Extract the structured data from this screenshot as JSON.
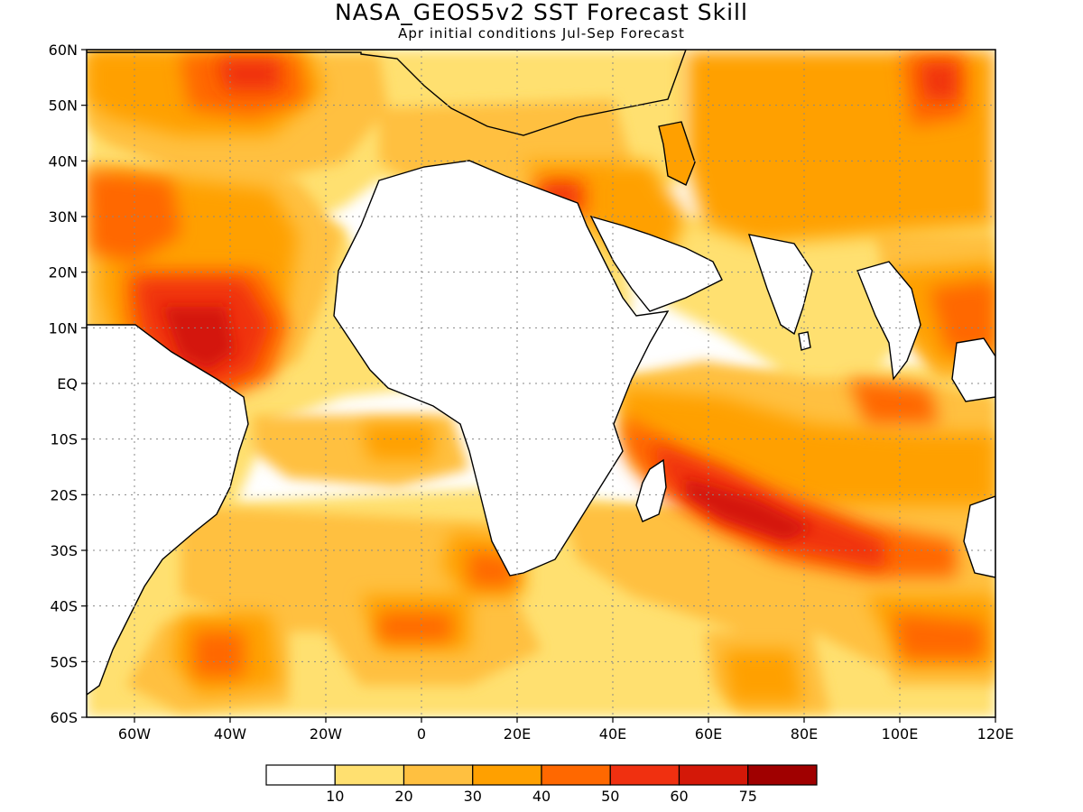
{
  "title": "NASA_GEOS5v2 SST Forecast Skill",
  "subtitle": "Apr initial conditions  Jul-Sep Forecast",
  "lat_labels": [
    "60N",
    "50N",
    "40N",
    "30N",
    "20N",
    "10N",
    "EQ",
    "10S",
    "20S",
    "30S",
    "40S",
    "50S",
    "60S"
  ],
  "lon_labels": [
    "60W",
    "40W",
    "20W",
    "0",
    "20E",
    "40E",
    "60E",
    "80E",
    "100E",
    "120E"
  ],
  "colorbar": {
    "colors": [
      "#ffffff",
      "#ffe070",
      "#ffc040",
      "#ffa000",
      "#ff6800",
      "#f03010",
      "#d41808",
      "#a00000"
    ],
    "labels": [
      "10",
      "20",
      "30",
      "40",
      "50",
      "60",
      "75"
    ]
  }
}
